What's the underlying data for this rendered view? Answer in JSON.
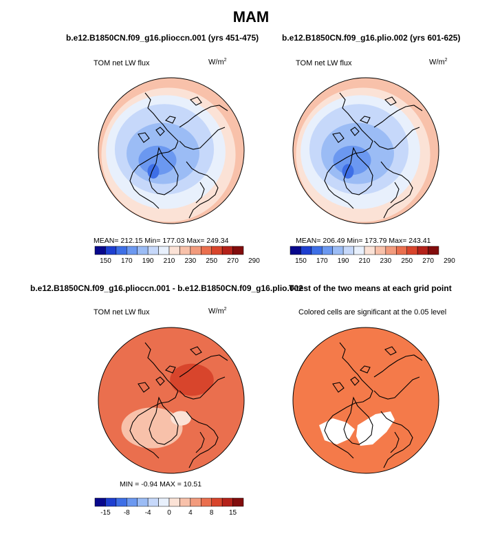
{
  "figure": {
    "title": "MAM",
    "panels": [
      {
        "title": "b.e12.B1850CN.f09_g16.pliocc​n.001 (yrs 451-475)",
        "left_label": "TOM net LW flux",
        "units_base": "W/m",
        "units_exp": "2",
        "stats": "MEAN= 212.15   Min= 177.03   Max= 249.34",
        "field": "absolute"
      },
      {
        "title": "b.e12.B1850CN.f09_g16.plio.002 (yrs 601-625)",
        "left_label": "TOM net LW flux",
        "units_base": "W/m",
        "units_exp": "2",
        "stats": "MEAN= 206.49   Min= 173.79   Max= 243.41",
        "field": "absolute"
      },
      {
        "title": "b.e12.B1850CN.f09_g16.pliocc​n.001 - b.e12.B1850CN.f09_g16.plio.002",
        "left_label": "TOM net LW flux",
        "units_base": "W/m",
        "units_exp": "2",
        "stats": "MIN =   -0.94  MAX =   10.51",
        "field": "difference"
      },
      {
        "title": "T-test of the two means at each grid point",
        "left_label": "Colored cells are significant at the 0.05 level",
        "field": "ttest"
      }
    ],
    "colorbars": {
      "absolute": [
        "150",
        "170",
        "190",
        "210",
        "230",
        "250",
        "270",
        "290"
      ],
      "difference": [
        "-15",
        "-8",
        "-4",
        "0",
        "4",
        "8",
        "15"
      ]
    },
    "palette": [
      "#08088c",
      "#1e3fd0",
      "#3e6fe6",
      "#6b98f0",
      "#9bbcf5",
      "#c6d8fa",
      "#e8f0fc",
      "#fbe2d6",
      "#f8c1aa",
      "#f29b7d",
      "#ea6f4e",
      "#d8452c",
      "#b4221a",
      "#820d0d"
    ],
    "significant_color": "#f47a4a"
  },
  "chart_data": [
    {
      "type": "heatmap",
      "title": "b.e12.B1850CN.f09_g16.plioccn.001 (yrs 451-475)",
      "variable": "TOM net LW flux",
      "units": "W/m2",
      "projection": "north polar stereographic",
      "mean": 212.15,
      "min": 177.03,
      "max": 249.34,
      "contour_levels": [
        150,
        160,
        170,
        180,
        190,
        200,
        210,
        220,
        230,
        240,
        250,
        260,
        270,
        280,
        290
      ]
    },
    {
      "type": "heatmap",
      "title": "b.e12.B1850CN.f09_g16.plio.002 (yrs 601-625)",
      "variable": "TOM net LW flux",
      "units": "W/m2",
      "projection": "north polar stereographic",
      "mean": 206.49,
      "min": 173.79,
      "max": 243.41,
      "contour_levels": [
        150,
        160,
        170,
        180,
        190,
        200,
        210,
        220,
        230,
        240,
        250,
        260,
        270,
        280,
        290
      ]
    },
    {
      "type": "heatmap",
      "title": "b.e12.B1850CN.f09_g16.plioccn.001 - b.e12.B1850CN.f09_g16.plio.002",
      "variable": "TOM net LW flux",
      "units": "W/m2",
      "projection": "north polar stereographic",
      "min": -0.94,
      "max": 10.51,
      "contour_levels": [
        -15,
        -12,
        -8,
        -6,
        -4,
        -2,
        0,
        2,
        4,
        6,
        8,
        12,
        15
      ]
    },
    {
      "type": "heatmap",
      "title": "T-test of the two means at each grid point",
      "note": "Colored cells are significant at the 0.05 level",
      "significance_level": 0.05
    }
  ]
}
